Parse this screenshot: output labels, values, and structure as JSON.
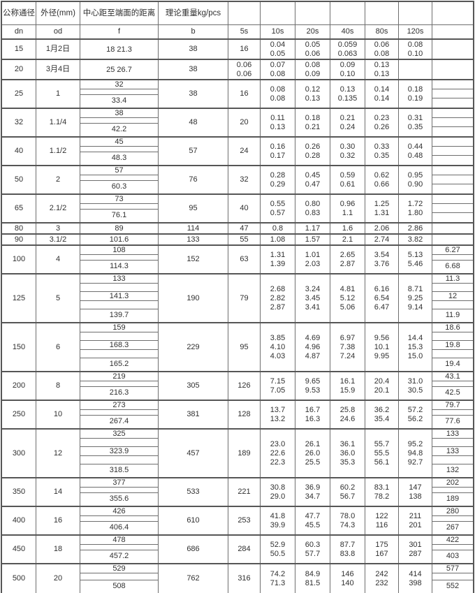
{
  "colors": {
    "border": "#6e6e6e",
    "border_strong": "#565656",
    "text": "#303030",
    "background": "#ffffff"
  },
  "table": {
    "header_row1": [
      "公称通径",
      "外径(mm)",
      "中心距至端面的距离",
      "理论重量kg/pcs",
      "",
      "",
      "",
      "",
      "",
      "",
      ""
    ],
    "header_row2": [
      "dn",
      "od",
      "f",
      "b",
      "5s",
      "10s",
      "20s",
      "40s",
      "80s",
      "120s",
      ""
    ],
    "rows": [
      {
        "dn": "15",
        "od": "1月2日",
        "f": [
          "18 21.3"
        ],
        "b": "38",
        "s5": [
          "16"
        ],
        "s10": [
          "0.04",
          "0.05"
        ],
        "s20": [
          "0.05",
          "0.06"
        ],
        "s40": [
          "0.059",
          "0.063"
        ],
        "s80": [
          "0.06",
          "0.08"
        ],
        "s120": [
          "0.08",
          "0.10"
        ],
        "extra": [
          ""
        ]
      },
      {
        "dn": "20",
        "od": "3月4日",
        "f": [
          "25 26.7"
        ],
        "b": "38",
        "s5": [
          "0.06",
          "0.06"
        ],
        "s10": [
          "0.07",
          "0.08"
        ],
        "s20": [
          "0.08",
          "0.09"
        ],
        "s40": [
          "0.09",
          "0.10"
        ],
        "s80": [
          "0.13",
          "0.13"
        ],
        "s120": [],
        "extra": [
          ""
        ]
      },
      {
        "dn": "25",
        "od": "1",
        "f": [
          "32",
          "",
          "33.4"
        ],
        "b": "38",
        "s5": [
          "16"
        ],
        "s10": [
          "0.08",
          "0.08"
        ],
        "s20": [
          "0.12",
          "0.13"
        ],
        "s40": [
          "0.13",
          "0.135"
        ],
        "s80": [
          "0.14",
          "0.14"
        ],
        "s120": [
          "0.18",
          "0.19"
        ],
        "extra": [
          "",
          "",
          ""
        ]
      },
      {
        "dn": "32",
        "od": "1.1/4",
        "f": [
          "38",
          "",
          "42.2"
        ],
        "b": "48",
        "s5": [
          "20"
        ],
        "s10": [
          "0.11",
          "0.13"
        ],
        "s20": [
          "0.18",
          "0.21"
        ],
        "s40": [
          "0.21",
          "0.24"
        ],
        "s80": [
          "0.23",
          "0.26"
        ],
        "s120": [
          "0.31",
          "0.35"
        ],
        "extra": [
          "",
          "",
          ""
        ]
      },
      {
        "dn": "40",
        "od": "1.1/2",
        "f": [
          "45",
          "",
          "48.3"
        ],
        "b": "57",
        "s5": [
          "24"
        ],
        "s10": [
          "0.16",
          "0.17"
        ],
        "s20": [
          "0.26",
          "0.28"
        ],
        "s40": [
          "0.30",
          "0.32"
        ],
        "s80": [
          "0.33",
          "0.35"
        ],
        "s120": [
          "0.44",
          "0.48"
        ],
        "extra": [
          "",
          "",
          ""
        ]
      },
      {
        "dn": "50",
        "od": "2",
        "f": [
          "57",
          "",
          "60.3"
        ],
        "b": "76",
        "s5": [
          "32"
        ],
        "s10": [
          "0.28",
          "0.29"
        ],
        "s20": [
          "0.45",
          "0.47"
        ],
        "s40": [
          "0.59",
          "0.61"
        ],
        "s80": [
          "0.62",
          "0.66"
        ],
        "s120": [
          "0.95",
          "0.90"
        ],
        "extra": [
          "",
          "",
          ""
        ]
      },
      {
        "dn": "65",
        "od": "2.1/2",
        "f": [
          "73",
          "",
          "76.1"
        ],
        "b": "95",
        "s5": [
          "40"
        ],
        "s10": [
          "0.55",
          "0.57"
        ],
        "s20": [
          "0.80",
          "0.83"
        ],
        "s40": [
          "0.96",
          "1.1"
        ],
        "s80": [
          "1.25",
          "1.31"
        ],
        "s120": [
          "1.72",
          "1.80"
        ],
        "extra": [
          "",
          "",
          ""
        ]
      },
      {
        "dn": "80",
        "od": "3",
        "f": [
          "89"
        ],
        "b": "114",
        "s5": [
          "47"
        ],
        "s10": [
          "0.8"
        ],
        "s20": [
          "1.17"
        ],
        "s40": [
          "1.6"
        ],
        "s80": [
          "2.06"
        ],
        "s120": [
          "2.86"
        ],
        "extra": [
          ""
        ]
      },
      {
        "dn": "90",
        "od": "3.1/2",
        "f": [
          "101.6"
        ],
        "b": "133",
        "s5": [
          "55"
        ],
        "s10": [
          "1.08"
        ],
        "s20": [
          "1.57"
        ],
        "s40": [
          "2.1"
        ],
        "s80": [
          "2.74"
        ],
        "s120": [
          "3.82"
        ],
        "extra": [
          ""
        ]
      },
      {
        "dn": "100",
        "od": "4",
        "f": [
          "108",
          "",
          "114.3"
        ],
        "b": "152",
        "s5": [
          "63"
        ],
        "s10": [
          "1.31",
          "1.39"
        ],
        "s20": [
          "1.01",
          "2.03"
        ],
        "s40": [
          "2.65",
          "2.87"
        ],
        "s80": [
          "3.54",
          "3.76"
        ],
        "s120": [
          "5.13",
          "5.46"
        ],
        "extra": [
          "6.27",
          "",
          "6.68"
        ]
      },
      {
        "dn": "125",
        "od": "5",
        "f": [
          "133",
          "",
          "141.3",
          "",
          "139.7"
        ],
        "b": "190",
        "s5": [
          "79"
        ],
        "s10": [
          "2.68",
          "2.82",
          "2.87"
        ],
        "s20": [
          "3.24",
          "3.45",
          "3.41"
        ],
        "s40": [
          "4.81",
          "5.12",
          "5.06"
        ],
        "s80": [
          "6.16",
          "6.54",
          "6.47"
        ],
        "s120": [
          "8.71",
          "9.25",
          "9.14"
        ],
        "extra": [
          "11.3",
          "",
          "12",
          "",
          "11.9"
        ]
      },
      {
        "dn": "150",
        "od": "6",
        "f": [
          "159",
          "",
          "168.3",
          "",
          "165.2"
        ],
        "b": "229",
        "s5": [
          "95"
        ],
        "s10": [
          "3.85",
          "4.10",
          "4.03"
        ],
        "s20": [
          "4.69",
          "4.96",
          "4.87"
        ],
        "s40": [
          "6.97",
          "7.38",
          "7.24"
        ],
        "s80": [
          "9.56",
          "10.1",
          "9.95"
        ],
        "s120": [
          "14.4",
          "15.3",
          "15.0"
        ],
        "extra": [
          "18.6",
          "",
          "19.8",
          "",
          "19.4"
        ]
      },
      {
        "dn": "200",
        "od": "8",
        "f": [
          "219",
          "",
          "216.3"
        ],
        "b": "305",
        "s5": [
          "126"
        ],
        "s10": [
          "7.15",
          "7.05"
        ],
        "s20": [
          "9.65",
          "9.53"
        ],
        "s40": [
          "16.1",
          "15.9"
        ],
        "s80": [
          "20.4",
          "20.1"
        ],
        "s120": [
          "31.0",
          "30.5"
        ],
        "extra": [
          "43.1",
          "",
          "42.5"
        ]
      },
      {
        "dn": "250",
        "od": "10",
        "f": [
          "273",
          "",
          "267.4"
        ],
        "b": "381",
        "s5": [
          "128"
        ],
        "s10": [
          "13.7",
          "13.2"
        ],
        "s20": [
          "16.7",
          "16.3"
        ],
        "s40": [
          "25.8",
          "24.6"
        ],
        "s80": [
          "36.2",
          "35.4"
        ],
        "s120": [
          "57.2",
          "56.2"
        ],
        "extra": [
          "79.7",
          "",
          "77.6"
        ]
      },
      {
        "dn": "300",
        "od": "12",
        "f": [
          "325",
          "",
          "323.9",
          "",
          "318.5"
        ],
        "b": "457",
        "s5": [
          "189"
        ],
        "s10": [
          "23.0",
          "22.6",
          "22.3"
        ],
        "s20": [
          "26.1",
          "26.0",
          "25.5"
        ],
        "s40": [
          "36.1",
          "36.0",
          "35.3"
        ],
        "s80": [
          "55.7",
          "55.5",
          "56.1"
        ],
        "s120": [
          "95.2",
          "94.8",
          "92.7"
        ],
        "extra": [
          "133",
          "",
          "133",
          "",
          "132"
        ]
      },
      {
        "dn": "350",
        "od": "14",
        "f": [
          "377",
          "",
          "355.6"
        ],
        "b": "533",
        "s5": [
          "221"
        ],
        "s10": [
          "30.8",
          "29.0"
        ],
        "s20": [
          "36.9",
          "34.7"
        ],
        "s40": [
          "60.2",
          "56.7"
        ],
        "s80": [
          "83.1",
          "78.2"
        ],
        "s120": [
          "147",
          "138"
        ],
        "extra": [
          "202",
          "",
          "189"
        ]
      },
      {
        "dn": "400",
        "od": "16",
        "f": [
          "426",
          "",
          "406.4"
        ],
        "b": "610",
        "s5": [
          "253"
        ],
        "s10": [
          "41.8",
          "39.9"
        ],
        "s20": [
          "47.7",
          "45.5"
        ],
        "s40": [
          "78.0",
          "74.3"
        ],
        "s80": [
          "122",
          "116"
        ],
        "s120": [
          "211",
          "201"
        ],
        "extra": [
          "280",
          "",
          "267"
        ]
      },
      {
        "dn": "450",
        "od": "18",
        "f": [
          "478",
          "",
          "457.2"
        ],
        "b": "686",
        "s5": [
          "284"
        ],
        "s10": [
          "52.9",
          "50.5"
        ],
        "s20": [
          "60.3",
          "57.7"
        ],
        "s40": [
          "87.7",
          "83.8"
        ],
        "s80": [
          "175",
          "167"
        ],
        "s120": [
          "301",
          "287"
        ],
        "extra": [
          "422",
          "",
          "403"
        ]
      },
      {
        "dn": "500",
        "od": "20",
        "f": [
          "529",
          "",
          "508"
        ],
        "b": "762",
        "s5": [
          "316"
        ],
        "s10": [
          "74.2",
          "71.3"
        ],
        "s20": [
          "84.9",
          "81.5"
        ],
        "s40": [
          "146",
          "140"
        ],
        "s80": [
          "242",
          "232"
        ],
        "s120": [
          "414",
          "398"
        ],
        "extra": [
          "577",
          "",
          "552"
        ]
      }
    ]
  }
}
